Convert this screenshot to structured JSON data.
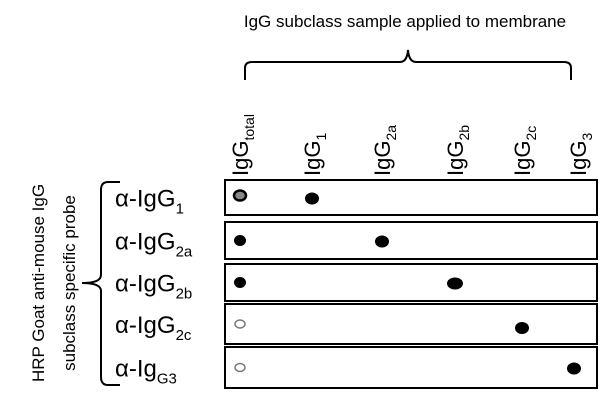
{
  "title": "IgG subclass sample applied to membrane",
  "probe_label": [
    "HRP Goat anti-mouse IgG",
    "subclass specific probe"
  ],
  "columns": [
    {
      "base": "IgG",
      "sub": "total"
    },
    {
      "base": "IgG",
      "sub": "1"
    },
    {
      "base": "IgG",
      "sub": "2a"
    },
    {
      "base": "IgG",
      "sub": "2b"
    },
    {
      "base": "IgG",
      "sub": "2c"
    },
    {
      "base": "IgG",
      "sub": "3"
    }
  ],
  "rows": [
    {
      "base": "α-IgG",
      "sub": "1"
    },
    {
      "base": "α-IgG",
      "sub": "2a"
    },
    {
      "base": "α-IgG",
      "sub": "2b"
    },
    {
      "base": "α-IgG",
      "sub": "2c"
    },
    {
      "base": "α-Ig",
      "sub": "G3"
    }
  ]
}
